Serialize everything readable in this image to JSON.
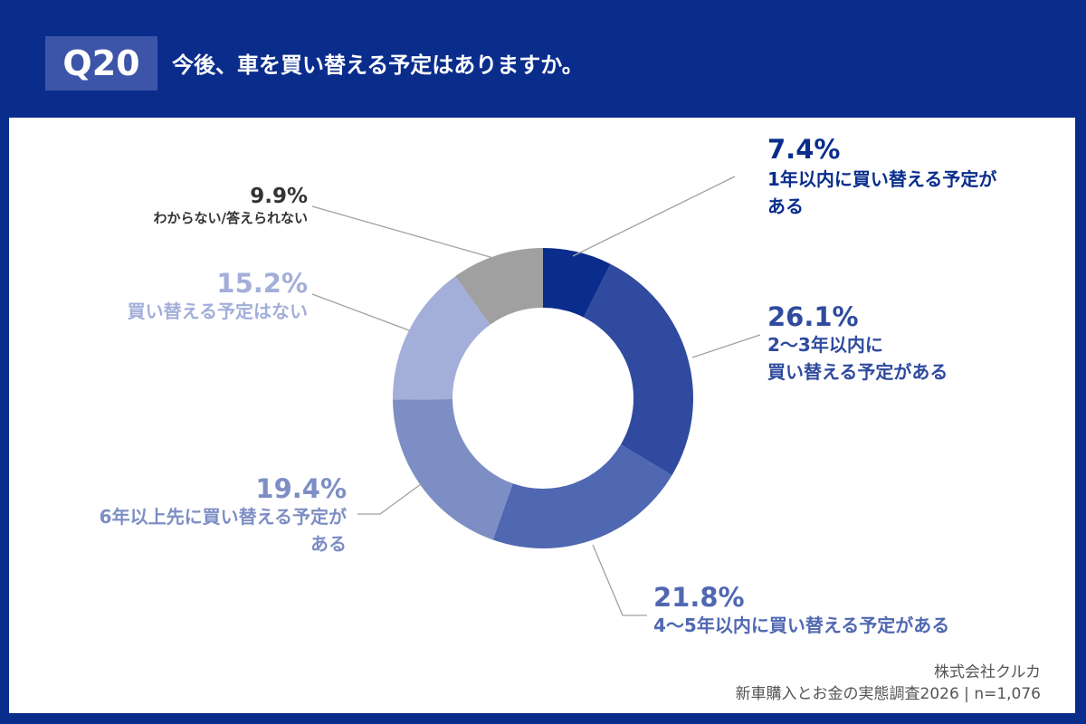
{
  "header": {
    "question_number": "Q20",
    "title": "今後、車を買い替える予定はありますか。"
  },
  "footer": {
    "company": "株式会社クルカ",
    "survey": "新車購入とお金の実態調査2026 | n=1,076"
  },
  "colors": {
    "header_bg": "#0a2d8c",
    "qbox_bg": "#3d55a8",
    "leader": "#a0a0a0"
  },
  "chart_data": {
    "type": "pie",
    "donut": true,
    "start": "top, clockwise",
    "slices": [
      {
        "value": 7.4,
        "pct_label": "7.4%",
        "label_lines": [
          "1年以内に買い替える予定が",
          "ある"
        ],
        "color": "#0a2d8c"
      },
      {
        "value": 26.1,
        "pct_label": "26.1%",
        "label_lines": [
          "2〜3年以内に",
          "買い替える予定がある"
        ],
        "color": "#2f4a9e"
      },
      {
        "value": 21.8,
        "pct_label": "21.8%",
        "label_lines": [
          "4〜5年以内に買い替える予定がある"
        ],
        "color": "#5068b2"
      },
      {
        "value": 19.4,
        "pct_label": "19.4%",
        "label_lines": [
          "6年以上先に買い替える予定が",
          "ある"
        ],
        "color": "#7d8ec4"
      },
      {
        "value": 15.2,
        "pct_label": "15.2%",
        "label_lines": [
          "買い替える予定はない"
        ],
        "color": "#a3aed9"
      },
      {
        "value": 9.9,
        "pct_label": "9.9%",
        "label_lines": [
          "わからない/答えられない"
        ],
        "color": "#a0a0a0",
        "text_color": "#333333"
      }
    ]
  }
}
